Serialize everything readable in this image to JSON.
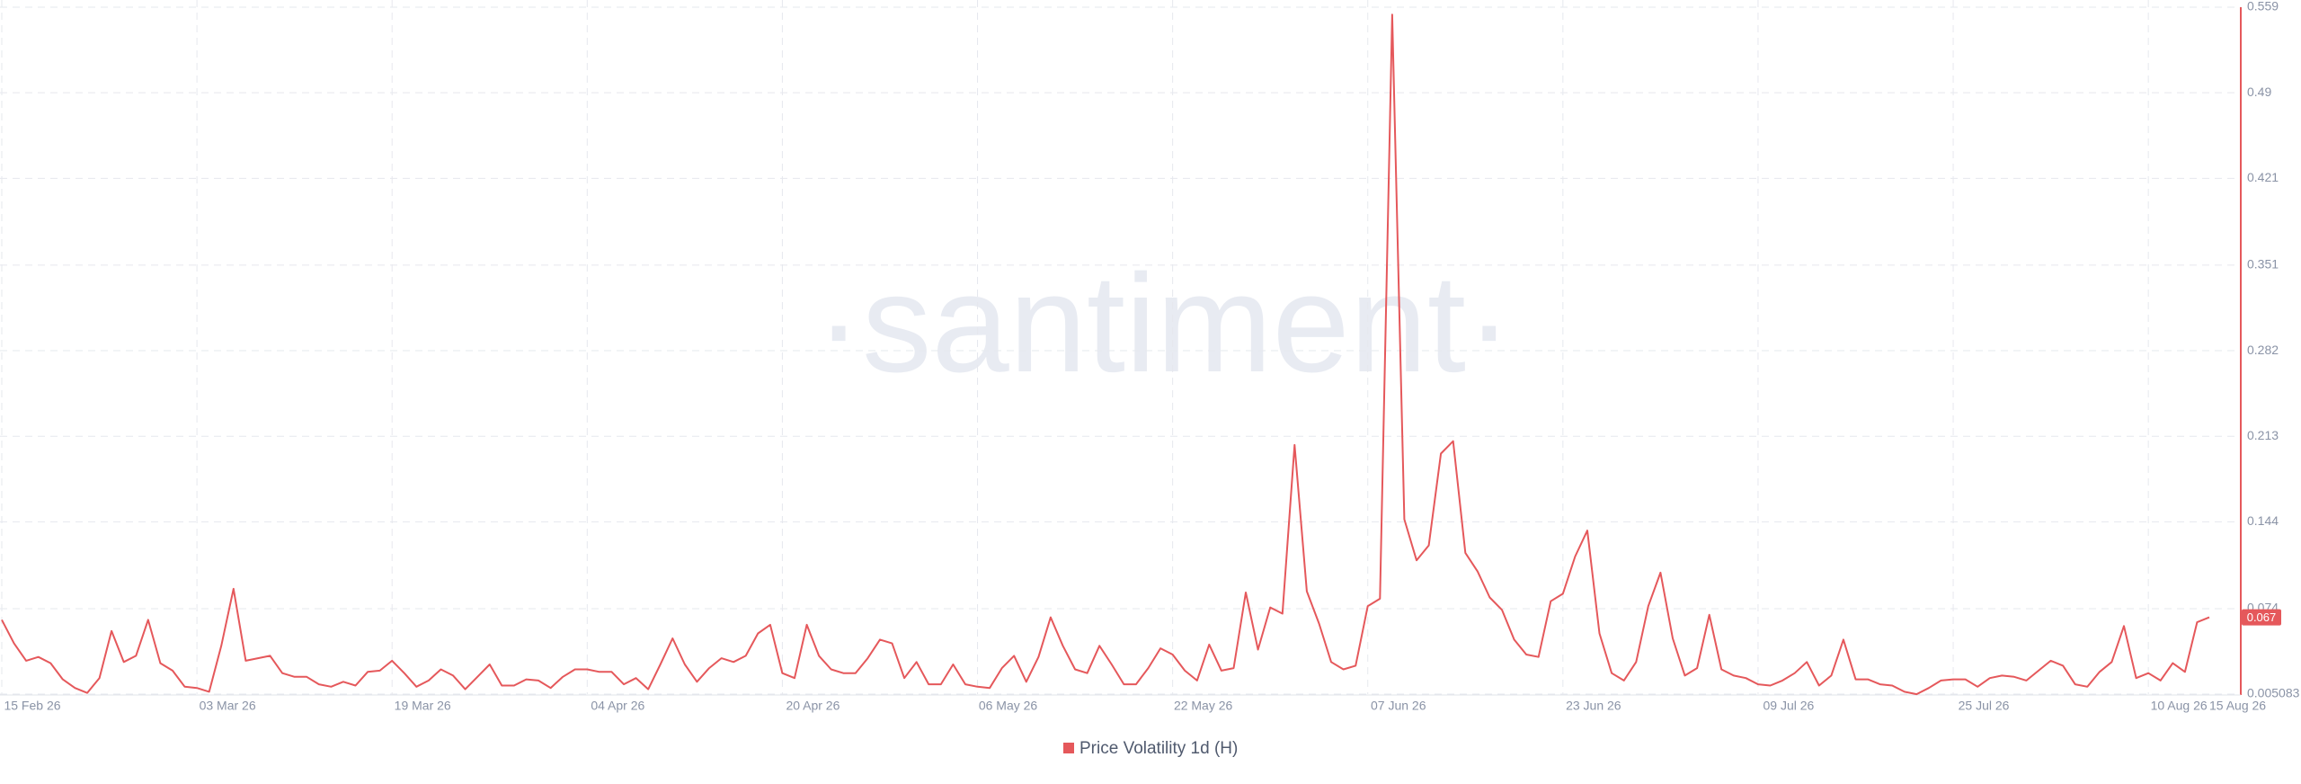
{
  "chart_data": {
    "type": "line",
    "watermark": "·santiment·",
    "x": [
      "15 Feb 26",
      "16 Feb 26",
      "17 Feb 26",
      "18 Feb 26",
      "19 Feb 26",
      "20 Feb 26",
      "21 Feb 26",
      "22 Feb 26",
      "23 Feb 26",
      "24 Feb 26",
      "25 Feb 26",
      "26 Feb 26",
      "27 Feb 26",
      "28 Feb 26",
      "01 Mar 26",
      "02 Mar 26",
      "03 Mar 26",
      "04 Mar 26",
      "05 Mar 26",
      "06 Mar 26",
      "07 Mar 26",
      "08 Mar 26",
      "09 Mar 26",
      "10 Mar 26",
      "11 Mar 26",
      "12 Mar 26",
      "13 Mar 26",
      "14 Mar 26",
      "15 Mar 26",
      "16 Mar 26",
      "17 Mar 26",
      "18 Mar 26",
      "19 Mar 26",
      "20 Mar 26",
      "21 Mar 26",
      "22 Mar 26",
      "23 Mar 26",
      "24 Mar 26",
      "25 Mar 26",
      "26 Mar 26",
      "27 Mar 26",
      "28 Mar 26",
      "29 Mar 26",
      "30 Mar 26",
      "31 Mar 26",
      "01 Apr 26",
      "02 Apr 26",
      "03 Apr 26",
      "04 Apr 26",
      "05 Apr 26",
      "06 Apr 26",
      "07 Apr 26",
      "08 Apr 26",
      "09 Apr 26",
      "10 Apr 26",
      "11 Apr 26",
      "12 Apr 26",
      "13 Apr 26",
      "14 Apr 26",
      "15 Apr 26",
      "16 Apr 26",
      "17 Apr 26",
      "18 Apr 26",
      "19 Apr 26",
      "20 Apr 26",
      "21 Apr 26",
      "22 Apr 26",
      "23 Apr 26",
      "24 Apr 26",
      "25 Apr 26",
      "26 Apr 26",
      "27 Apr 26",
      "28 Apr 26",
      "29 Apr 26",
      "30 Apr 26",
      "01 May 26",
      "02 May 26",
      "03 May 26",
      "04 May 26",
      "05 May 26",
      "06 May 26",
      "07 May 26",
      "08 May 26",
      "09 May 26",
      "10 May 26",
      "11 May 26",
      "12 May 26",
      "13 May 26",
      "14 May 26",
      "15 May 26",
      "16 May 26",
      "17 May 26",
      "18 May 26",
      "19 May 26",
      "20 May 26",
      "21 May 26",
      "22 May 26",
      "23 May 26",
      "24 May 26",
      "25 May 26",
      "26 May 26",
      "27 May 26",
      "28 May 26",
      "29 May 26",
      "30 May 26",
      "31 May 26",
      "01 Jun 26",
      "02 Jun 26",
      "03 Jun 26",
      "04 Jun 26",
      "05 Jun 26",
      "06 Jun 26",
      "07 Jun 26",
      "08 Jun 26",
      "09 Jun 26",
      "10 Jun 26",
      "11 Jun 26",
      "12 Jun 26",
      "13 Jun 26",
      "14 Jun 26",
      "15 Jun 26",
      "16 Jun 26",
      "17 Jun 26",
      "18 Jun 26",
      "19 Jun 26",
      "20 Jun 26",
      "21 Jun 26",
      "22 Jun 26",
      "23 Jun 26",
      "24 Jun 26",
      "25 Jun 26",
      "26 Jun 26",
      "27 Jun 26",
      "28 Jun 26",
      "29 Jun 26",
      "30 Jun 26",
      "01 Jul 26",
      "02 Jul 26",
      "03 Jul 26",
      "04 Jul 26",
      "05 Jul 26",
      "06 Jul 26",
      "07 Jul 26",
      "08 Jul 26",
      "09 Jul 26",
      "10 Jul 26",
      "11 Jul 26",
      "12 Jul 26",
      "13 Jul 26",
      "14 Jul 26",
      "15 Jul 26",
      "16 Jul 26",
      "17 Jul 26",
      "18 Jul 26",
      "19 Jul 26",
      "20 Jul 26",
      "21 Jul 26",
      "22 Jul 26",
      "23 Jul 26",
      "24 Jul 26",
      "25 Jul 26",
      "26 Jul 26",
      "27 Jul 26",
      "28 Jul 26",
      "29 Jul 26",
      "30 Jul 26",
      "31 Jul 26",
      "01 Aug 26",
      "02 Aug 26",
      "03 Aug 26",
      "04 Aug 26",
      "05 Aug 26",
      "06 Aug 26",
      "07 Aug 26",
      "08 Aug 26",
      "09 Aug 26",
      "10 Aug 26",
      "11 Aug 26",
      "12 Aug 26",
      "13 Aug 26",
      "14 Aug 26",
      "15 Aug 26"
    ],
    "series": [
      {
        "name": "Price Volatility 1d (H)",
        "color": "#e5585b",
        "values": [
          0.065,
          0.046,
          0.032,
          0.035,
          0.03,
          0.017,
          0.01,
          0.006,
          0.018,
          0.056,
          0.031,
          0.036,
          0.065,
          0.03,
          0.024,
          0.011,
          0.01,
          0.007,
          0.044,
          0.09,
          0.032,
          0.034,
          0.036,
          0.022,
          0.019,
          0.019,
          0.013,
          0.011,
          0.015,
          0.012,
          0.023,
          0.024,
          0.032,
          0.022,
          0.011,
          0.016,
          0.025,
          0.02,
          0.009,
          0.019,
          0.029,
          0.012,
          0.012,
          0.017,
          0.016,
          0.01,
          0.019,
          0.025,
          0.025,
          0.023,
          0.023,
          0.013,
          0.018,
          0.009,
          0.029,
          0.05,
          0.029,
          0.015,
          0.026,
          0.034,
          0.031,
          0.036,
          0.054,
          0.061,
          0.022,
          0.018,
          0.061,
          0.036,
          0.025,
          0.022,
          0.022,
          0.034,
          0.049,
          0.046,
          0.018,
          0.031,
          0.013,
          0.013,
          0.029,
          0.013,
          0.011,
          0.01,
          0.026,
          0.036,
          0.015,
          0.035,
          0.067,
          0.044,
          0.025,
          0.022,
          0.044,
          0.029,
          0.013,
          0.013,
          0.026,
          0.042,
          0.037,
          0.024,
          0.016,
          0.045,
          0.024,
          0.026,
          0.087,
          0.041,
          0.075,
          0.07,
          0.206,
          0.088,
          0.062,
          0.031,
          0.025,
          0.028,
          0.076,
          0.082,
          0.553,
          0.146,
          0.113,
          0.125,
          0.199,
          0.209,
          0.119,
          0.104,
          0.083,
          0.073,
          0.049,
          0.037,
          0.035,
          0.08,
          0.086,
          0.116,
          0.137,
          0.054,
          0.022,
          0.016,
          0.031,
          0.076,
          0.103,
          0.05,
          0.02,
          0.026,
          0.069,
          0.025,
          0.02,
          0.018,
          0.013,
          0.012,
          0.016,
          0.022,
          0.031,
          0.012,
          0.02,
          0.049,
          0.017,
          0.017,
          0.013,
          0.012,
          0.007,
          0.005,
          0.01,
          0.016,
          0.017,
          0.017,
          0.011,
          0.018,
          0.02,
          0.019,
          0.016,
          0.024,
          0.032,
          0.028,
          0.013,
          0.011,
          0.023,
          0.031,
          0.06,
          0.018,
          0.022,
          0.016,
          0.03,
          0.023,
          0.063,
          0.067
        ]
      }
    ],
    "xlim": [
      "15 Feb 26",
      "15 Aug 26"
    ],
    "xticks": [
      "15 Feb 26",
      "03 Mar 26",
      "19 Mar 26",
      "04 Apr 26",
      "20 Apr 26",
      "06 May 26",
      "22 May 26",
      "07 Jun 26",
      "23 Jun 26",
      "09 Jul 26",
      "25 Jul 26",
      "10 Aug 26",
      "15 Aug 26"
    ],
    "ylim": [
      0.005083,
      0.559
    ],
    "yticks": [
      0.005083,
      0.074,
      0.144,
      0.213,
      0.282,
      0.351,
      0.421,
      0.49,
      0.559
    ],
    "grid": true
  }
}
